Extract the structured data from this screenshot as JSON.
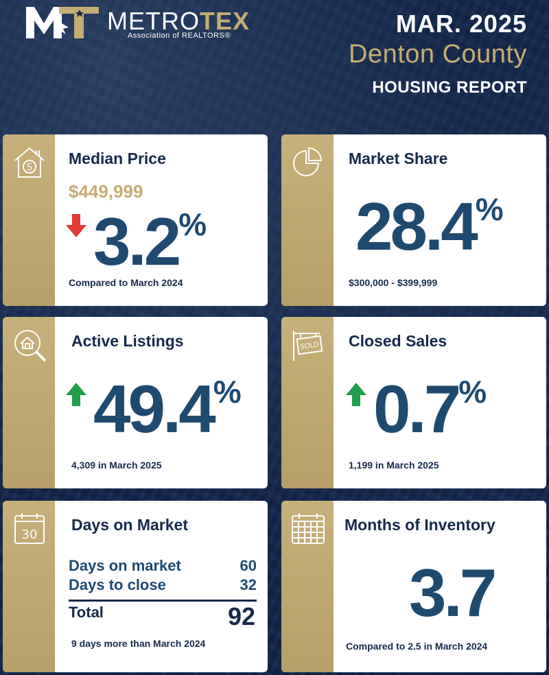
{
  "header": {
    "brand_left": "METRO",
    "brand_right": "TEX",
    "brand_sub": "Association of REALTORS®",
    "date": "MAR. 2025",
    "county": "Denton County",
    "report": "HOUSING REPORT"
  },
  "colors": {
    "navy": "#16294a",
    "blue": "#1e4a70",
    "gold": "#c6ad73",
    "down_red": "#e53935",
    "up_green": "#1e9e4a"
  },
  "cards": {
    "median_price": {
      "title": "Median Price",
      "icon": "house-dollar-icon",
      "price": "$449,999",
      "trend": "down",
      "value": "3.2",
      "unit": "%",
      "foot": "Compared to March 2024"
    },
    "market_share": {
      "title": "Market Share",
      "icon": "pie-chart-icon",
      "value": "28.4",
      "unit": "%",
      "foot": "$300,000 - $399,999"
    },
    "active_listings": {
      "title": "Active Listings",
      "icon": "house-search-icon",
      "trend": "up",
      "value": "49.4",
      "unit": "%",
      "foot": "4,309 in March 2025"
    },
    "closed_sales": {
      "title": "Closed Sales",
      "icon": "sold-sign-icon",
      "trend": "up",
      "value": "0.7",
      "unit": "%",
      "foot": "1,199 in March 2025"
    },
    "days_on_market": {
      "title": "Days on Market",
      "icon": "calendar-30-icon",
      "icon_text": "30",
      "rows": [
        {
          "label": "Days on market",
          "value": "60"
        },
        {
          "label": "Days to close",
          "value": "32"
        }
      ],
      "total_label": "Total",
      "total_value": "92",
      "foot": "9 days more than March 2024"
    },
    "months_inventory": {
      "title": "Months of Inventory",
      "icon": "calendar-grid-icon",
      "value": "3.7",
      "foot": "Compared to 2.5 in March 2024"
    }
  }
}
